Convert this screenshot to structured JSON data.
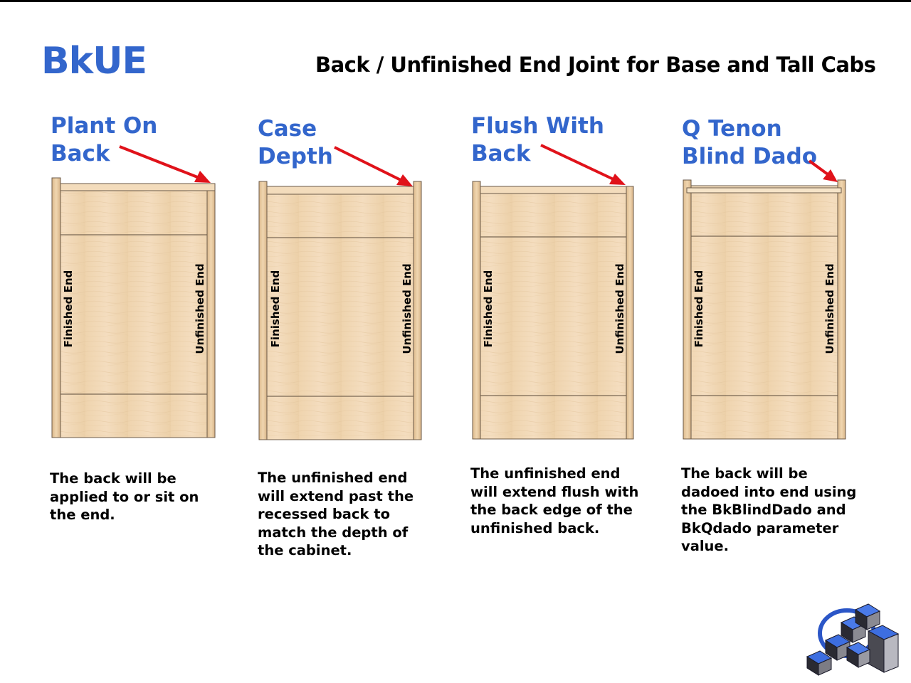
{
  "slide": {
    "code": "BkUE",
    "title": "Back / Unfinished End Joint for Base and Tall Cabs"
  },
  "labels": {
    "finished_end": "Finished End",
    "unfinished_end": "Unfinished End"
  },
  "panels": [
    {
      "title_line1": "Plant On",
      "title_line2": "Back",
      "description": "The back will be applied to or sit on the end."
    },
    {
      "title_line1": "Case",
      "title_line2": "Depth",
      "description": "The unfinished end will extend past the recessed back to match the depth of the cabinet."
    },
    {
      "title_line1": "Flush With",
      "title_line2": "Back",
      "description": "The unfinished end will extend flush with the back edge of the unfinished back."
    },
    {
      "title_line1": "Q Tenon",
      "title_line2": "Blind Dado",
      "description": "The back will be dadoed into end using the BkBlindDado and BkQdado parameter value."
    }
  ],
  "colors": {
    "accent_blue": "#3366cc",
    "arrow_red": "#e0121a",
    "wood_light": "#f1d9b7",
    "wood_mid": "#ead0aa",
    "wood_edge": "#e7cba4",
    "outline": "#5a4a3a"
  },
  "icons": {
    "logo": "blue-cube-cluster-logo"
  }
}
